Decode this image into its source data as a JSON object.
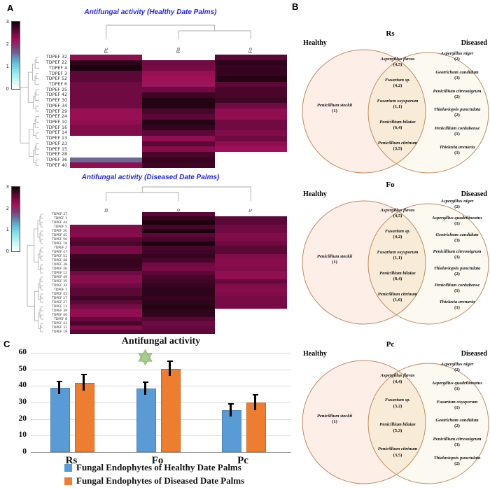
{
  "panels": {
    "a": "A",
    "b": "B",
    "c": "C"
  },
  "colorbar": {
    "ticks": [
      "3",
      "2",
      "1",
      "0"
    ],
    "min": 0,
    "max": 3
  },
  "chart_data": [
    {
      "type": "heatmap",
      "title": "Antifungal activity (Healthy Date Palms)",
      "columns": [
        "Pc",
        "Rs",
        "Fo"
      ],
      "rows": [
        "TDPEF 32",
        "TDPEF 22",
        "TDPEF 4",
        "TDPEF 3",
        "TDPEF 52",
        "TDPEF 6",
        "TDPEF 25",
        "TDPEF 42",
        "TDPEF 30",
        "TDPEF 34",
        "TDPEF 29",
        "TDPEF 24",
        "TDPEF 10",
        "TDPEF 16",
        "TDPEF 14",
        "TDPEF 13",
        "TDPEF 23",
        "TDPEF 15",
        "TDPEF 28",
        "TDPEF 36",
        "TDPEF 40"
      ],
      "values": [
        [
          2.3,
          0,
          2.6
        ],
        [
          2.85,
          2.5,
          2.85
        ],
        [
          2.95,
          2.45,
          2.8
        ],
        [
          2.6,
          2.25,
          2.8
        ],
        [
          2.6,
          2.2,
          2.9
        ],
        [
          2.5,
          2.15,
          2.6
        ],
        [
          2.5,
          2.5,
          2.7
        ],
        [
          2.5,
          2.75,
          2.7
        ],
        [
          2.5,
          2.9,
          2.75
        ],
        [
          2.5,
          2.9,
          2.5
        ],
        [
          2.25,
          2.7,
          2.3
        ],
        [
          2.25,
          2.6,
          2.3
        ],
        [
          2.3,
          2.9,
          2.5
        ],
        [
          2.4,
          2.8,
          2.5
        ],
        [
          2.4,
          2.6,
          2.4
        ],
        [
          0,
          2.3,
          2.5
        ],
        [
          0,
          2.6,
          2.3
        ],
        [
          0,
          2.35,
          2.2
        ],
        [
          0,
          2.7,
          0
        ],
        [
          1.6,
          2.8,
          0
        ],
        [
          2.3,
          2.75,
          0
        ]
      ],
      "scale": {
        "min": 0,
        "max": 3
      }
    },
    {
      "type": "heatmap",
      "title": "Antifungal activity (Diseased Date Palms)",
      "columns": [
        "Rs",
        "Fo",
        "Pc"
      ],
      "rows": [
        "TDPEF 37",
        "TDPEF 1",
        "TDPEF 44",
        "TDPEF 5",
        "TDPEF 20",
        "TDPEF 45",
        "TDPEF 50",
        "TDPEF 18",
        "TDPEF 2",
        "TDPEF 47",
        "TDPEF 51",
        "TDPEF 48",
        "TDPEF 38",
        "TDPEF 26",
        "TDPEF 12",
        "TDPEF 49",
        "TDPEF 35",
        "TDPEF 33",
        "TDPEF 7",
        "TDPEF 41",
        "TDPEF 17",
        "TDPEF 27",
        "TDPEF 11",
        "TDPEF 39",
        "TDPEF 46",
        "TDPEF 8",
        "TDPEF 43",
        "TDPEF 31",
        "TDPEF 19"
      ],
      "values": [
        [
          0,
          2.6,
          0
        ],
        [
          0,
          2.8,
          2.6
        ],
        [
          0,
          2.95,
          2.6
        ],
        [
          2.4,
          2.7,
          2.5
        ],
        [
          2.4,
          2.95,
          2.5
        ],
        [
          2.35,
          2.6,
          2.4
        ],
        [
          2.6,
          2.7,
          2.4
        ],
        [
          2.7,
          2.95,
          2.5
        ],
        [
          2.45,
          2.7,
          2.6
        ],
        [
          2.45,
          2.75,
          2.6
        ],
        [
          2.75,
          2.8,
          2.4
        ],
        [
          2.8,
          2.7,
          2.35
        ],
        [
          2.8,
          2.5,
          2.35
        ],
        [
          2.75,
          2.45,
          2.4
        ],
        [
          2.5,
          2.6,
          2.3
        ],
        [
          2.35,
          2.7,
          2.3
        ],
        [
          2.35,
          2.75,
          2.55
        ],
        [
          2.5,
          2.8,
          2.4
        ],
        [
          2.6,
          2.85,
          2.35
        ],
        [
          2.6,
          2.85,
          2.4
        ],
        [
          2.75,
          2.8,
          2.45
        ],
        [
          2.6,
          2.85,
          2.45
        ],
        [
          2.45,
          2.9,
          2.45
        ],
        [
          2.3,
          2.85,
          0
        ],
        [
          2.3,
          2.8,
          0
        ],
        [
          2.55,
          2.6,
          0
        ],
        [
          2.7,
          2.5,
          0
        ],
        [
          2.4,
          2.55,
          0
        ],
        [
          2.6,
          2.6,
          0
        ]
      ],
      "scale": {
        "min": 0,
        "max": 3
      }
    },
    {
      "type": "bar",
      "title": "Antifungal activity",
      "categories": [
        "Rs",
        "Fo",
        "Pc"
      ],
      "series": [
        {
          "name": "Fungal Endophytes of Healthy Date Palms",
          "color": "#5b9bd5",
          "values": [
            38,
            37.5,
            24.5
          ],
          "errors": [
            5,
            5,
            5
          ]
        },
        {
          "name": "Fungal Endophytes of Diseased Date Palms",
          "color": "#ed7d31",
          "values": [
            41,
            49.5,
            29
          ],
          "errors": [
            6.5,
            6,
            6
          ]
        }
      ],
      "ylim": [
        0,
        60
      ],
      "yticks": [
        0,
        10,
        20,
        30,
        40,
        50,
        60
      ],
      "annotation": {
        "symbol": "green-six-pointed-star",
        "color": "#a6cd8f",
        "above_category": "Fo"
      }
    }
  ],
  "venn_diagrams": [
    {
      "title": "Rs",
      "left_label": "Healthy",
      "right_label": "Diseased",
      "healthy_only": [
        {
          "name": "Penicillium steckii",
          "count": "(1)"
        }
      ],
      "shared": [
        {
          "name": "Aspergillus flavus",
          "count": "(4,5)"
        },
        {
          "name": "Fusarium sp.",
          "count": "(4,2)"
        },
        {
          "name": "Fusarium oxysporum",
          "count": "(1,1)"
        },
        {
          "name": "Penicillium bilaiae",
          "count": "(6,4)"
        },
        {
          "name": "Penicillium citrinum",
          "count": "(3,5)"
        }
      ],
      "diseased_only": [
        {
          "name": "Aspergillus niger",
          "count": "(2)"
        },
        {
          "name": "Geotrichum candidum",
          "count": "(3)"
        },
        {
          "name": "Penicillium citreonigrum",
          "count": "(2)"
        },
        {
          "name": "Thielaviopsis punctulata",
          "count": "(2)"
        },
        {
          "name": "Penicillium cordubense",
          "count": "(1)"
        },
        {
          "name": "Thielavia arenaria",
          "count": "(1)"
        }
      ]
    },
    {
      "title": "Fo",
      "left_label": "Healthy",
      "right_label": "Diseased",
      "healthy_only": [
        {
          "name": "Penicillium steckii",
          "count": "(1)"
        }
      ],
      "shared": [
        {
          "name": "Aspergillus flavus",
          "count": "(4,5)"
        },
        {
          "name": "Fusarium sp.",
          "count": "(4,2)"
        },
        {
          "name": "Fusarium oxysporum",
          "count": "(1,1)"
        },
        {
          "name": "Penicillium bilaiae",
          "count": "(8,4)"
        },
        {
          "name": "Penicillium citrinum",
          "count": "(1,6)"
        }
      ],
      "diseased_only": [
        {
          "name": "Aspergillus niger",
          "count": "(2)"
        },
        {
          "name": "Aspergillus quadrilineatus",
          "count": "(1)"
        },
        {
          "name": "Geotrichum candidum",
          "count": "(3)"
        },
        {
          "name": "Penicillium citreonigrum",
          "count": "(3)"
        },
        {
          "name": "Thielaviopsis punctulata",
          "count": "(2)"
        },
        {
          "name": "Penicillium cordubense",
          "count": "(1)"
        },
        {
          "name": "Thielavia arenaria",
          "count": "(1)"
        }
      ]
    },
    {
      "title": "Pc",
      "left_label": "Healthy",
      "right_label": "Diseased",
      "healthy_only": [
        {
          "name": "Penicillium steckii",
          "count": "(1)"
        }
      ],
      "shared": [
        {
          "name": "Aspergillus flavus",
          "count": "(4,4)"
        },
        {
          "name": "Fusarium sp.",
          "count": "(3,2)"
        },
        {
          "name": "Penicillium bilaiae",
          "count": "(5,3)"
        },
        {
          "name": "Penicillium citrinum",
          "count": "(3,5)"
        }
      ],
      "diseased_only": [
        {
          "name": "Aspergillus niger",
          "count": "(2)"
        },
        {
          "name": "Aspergillus quadrilineatus",
          "count": "(1)"
        },
        {
          "name": "Fusarium oxysporum",
          "count": "(1)"
        },
        {
          "name": "Geotrichum candidum",
          "count": "(2)"
        },
        {
          "name": "Penicillium citreonigrum",
          "count": "(3)"
        },
        {
          "name": "Thielaviopsis punctulata",
          "count": "(2)"
        }
      ]
    }
  ],
  "colors": {
    "healthy_bar": "#5b9bd5",
    "diseased_bar": "#ed7d31",
    "venn_stroke": "#c08a5e",
    "venn_left_fill": "#fdeee8",
    "venn_right_fill": "#fcf9f0",
    "venn_overlap_fill": "#f8ecd9",
    "heatmap_title_blue": "#2326dd",
    "star_green": "#a6cd8f"
  }
}
